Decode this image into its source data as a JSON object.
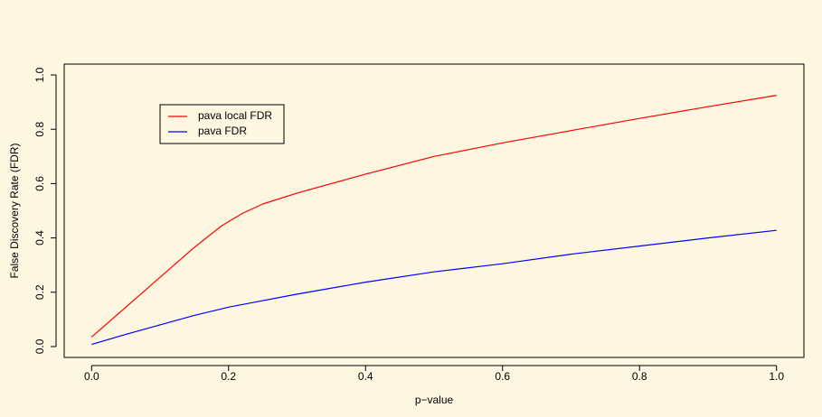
{
  "colors": {
    "background": "#fdf6e0",
    "red_series": "#ff0000",
    "blue_series": "#0000ff",
    "axis": "#000000"
  },
  "chart_data": {
    "type": "line",
    "title": "",
    "xlabel": "p−value",
    "ylabel": "False Discovery Rate (FDR)",
    "xlim": [
      -0.04,
      1.04
    ],
    "ylim": [
      -0.04,
      1.04
    ],
    "x_ticks": [
      0.0,
      0.2,
      0.4,
      0.6,
      0.8,
      1.0
    ],
    "y_ticks": [
      0.0,
      0.2,
      0.4,
      0.6,
      0.8,
      1.0
    ],
    "x_tick_labels": [
      "0.0",
      "0.2",
      "0.4",
      "0.6",
      "0.8",
      "1.0"
    ],
    "y_tick_labels": [
      "0.0",
      "0.2",
      "0.4",
      "0.6",
      "0.8",
      "1.0"
    ],
    "legend_position": "top-left",
    "grid": false,
    "series": [
      {
        "name": "pava local FDR",
        "color": "#ff0000",
        "x": [
          0.0,
          0.05,
          0.1,
          0.15,
          0.19,
          0.22,
          0.25,
          0.3,
          0.4,
          0.5,
          0.55,
          0.6,
          0.7,
          0.8,
          0.9,
          1.0
        ],
        "y": [
          0.035,
          0.145,
          0.255,
          0.365,
          0.445,
          0.49,
          0.525,
          0.565,
          0.635,
          0.7,
          0.725,
          0.75,
          0.795,
          0.84,
          0.883,
          0.925
        ]
      },
      {
        "name": "pava FDR",
        "color": "#0000ff",
        "x": [
          0.0,
          0.05,
          0.1,
          0.15,
          0.2,
          0.3,
          0.4,
          0.5,
          0.6,
          0.7,
          0.8,
          0.9,
          1.0
        ],
        "y": [
          0.008,
          0.045,
          0.08,
          0.115,
          0.145,
          0.193,
          0.237,
          0.275,
          0.305,
          0.34,
          0.37,
          0.4,
          0.428
        ]
      }
    ]
  }
}
